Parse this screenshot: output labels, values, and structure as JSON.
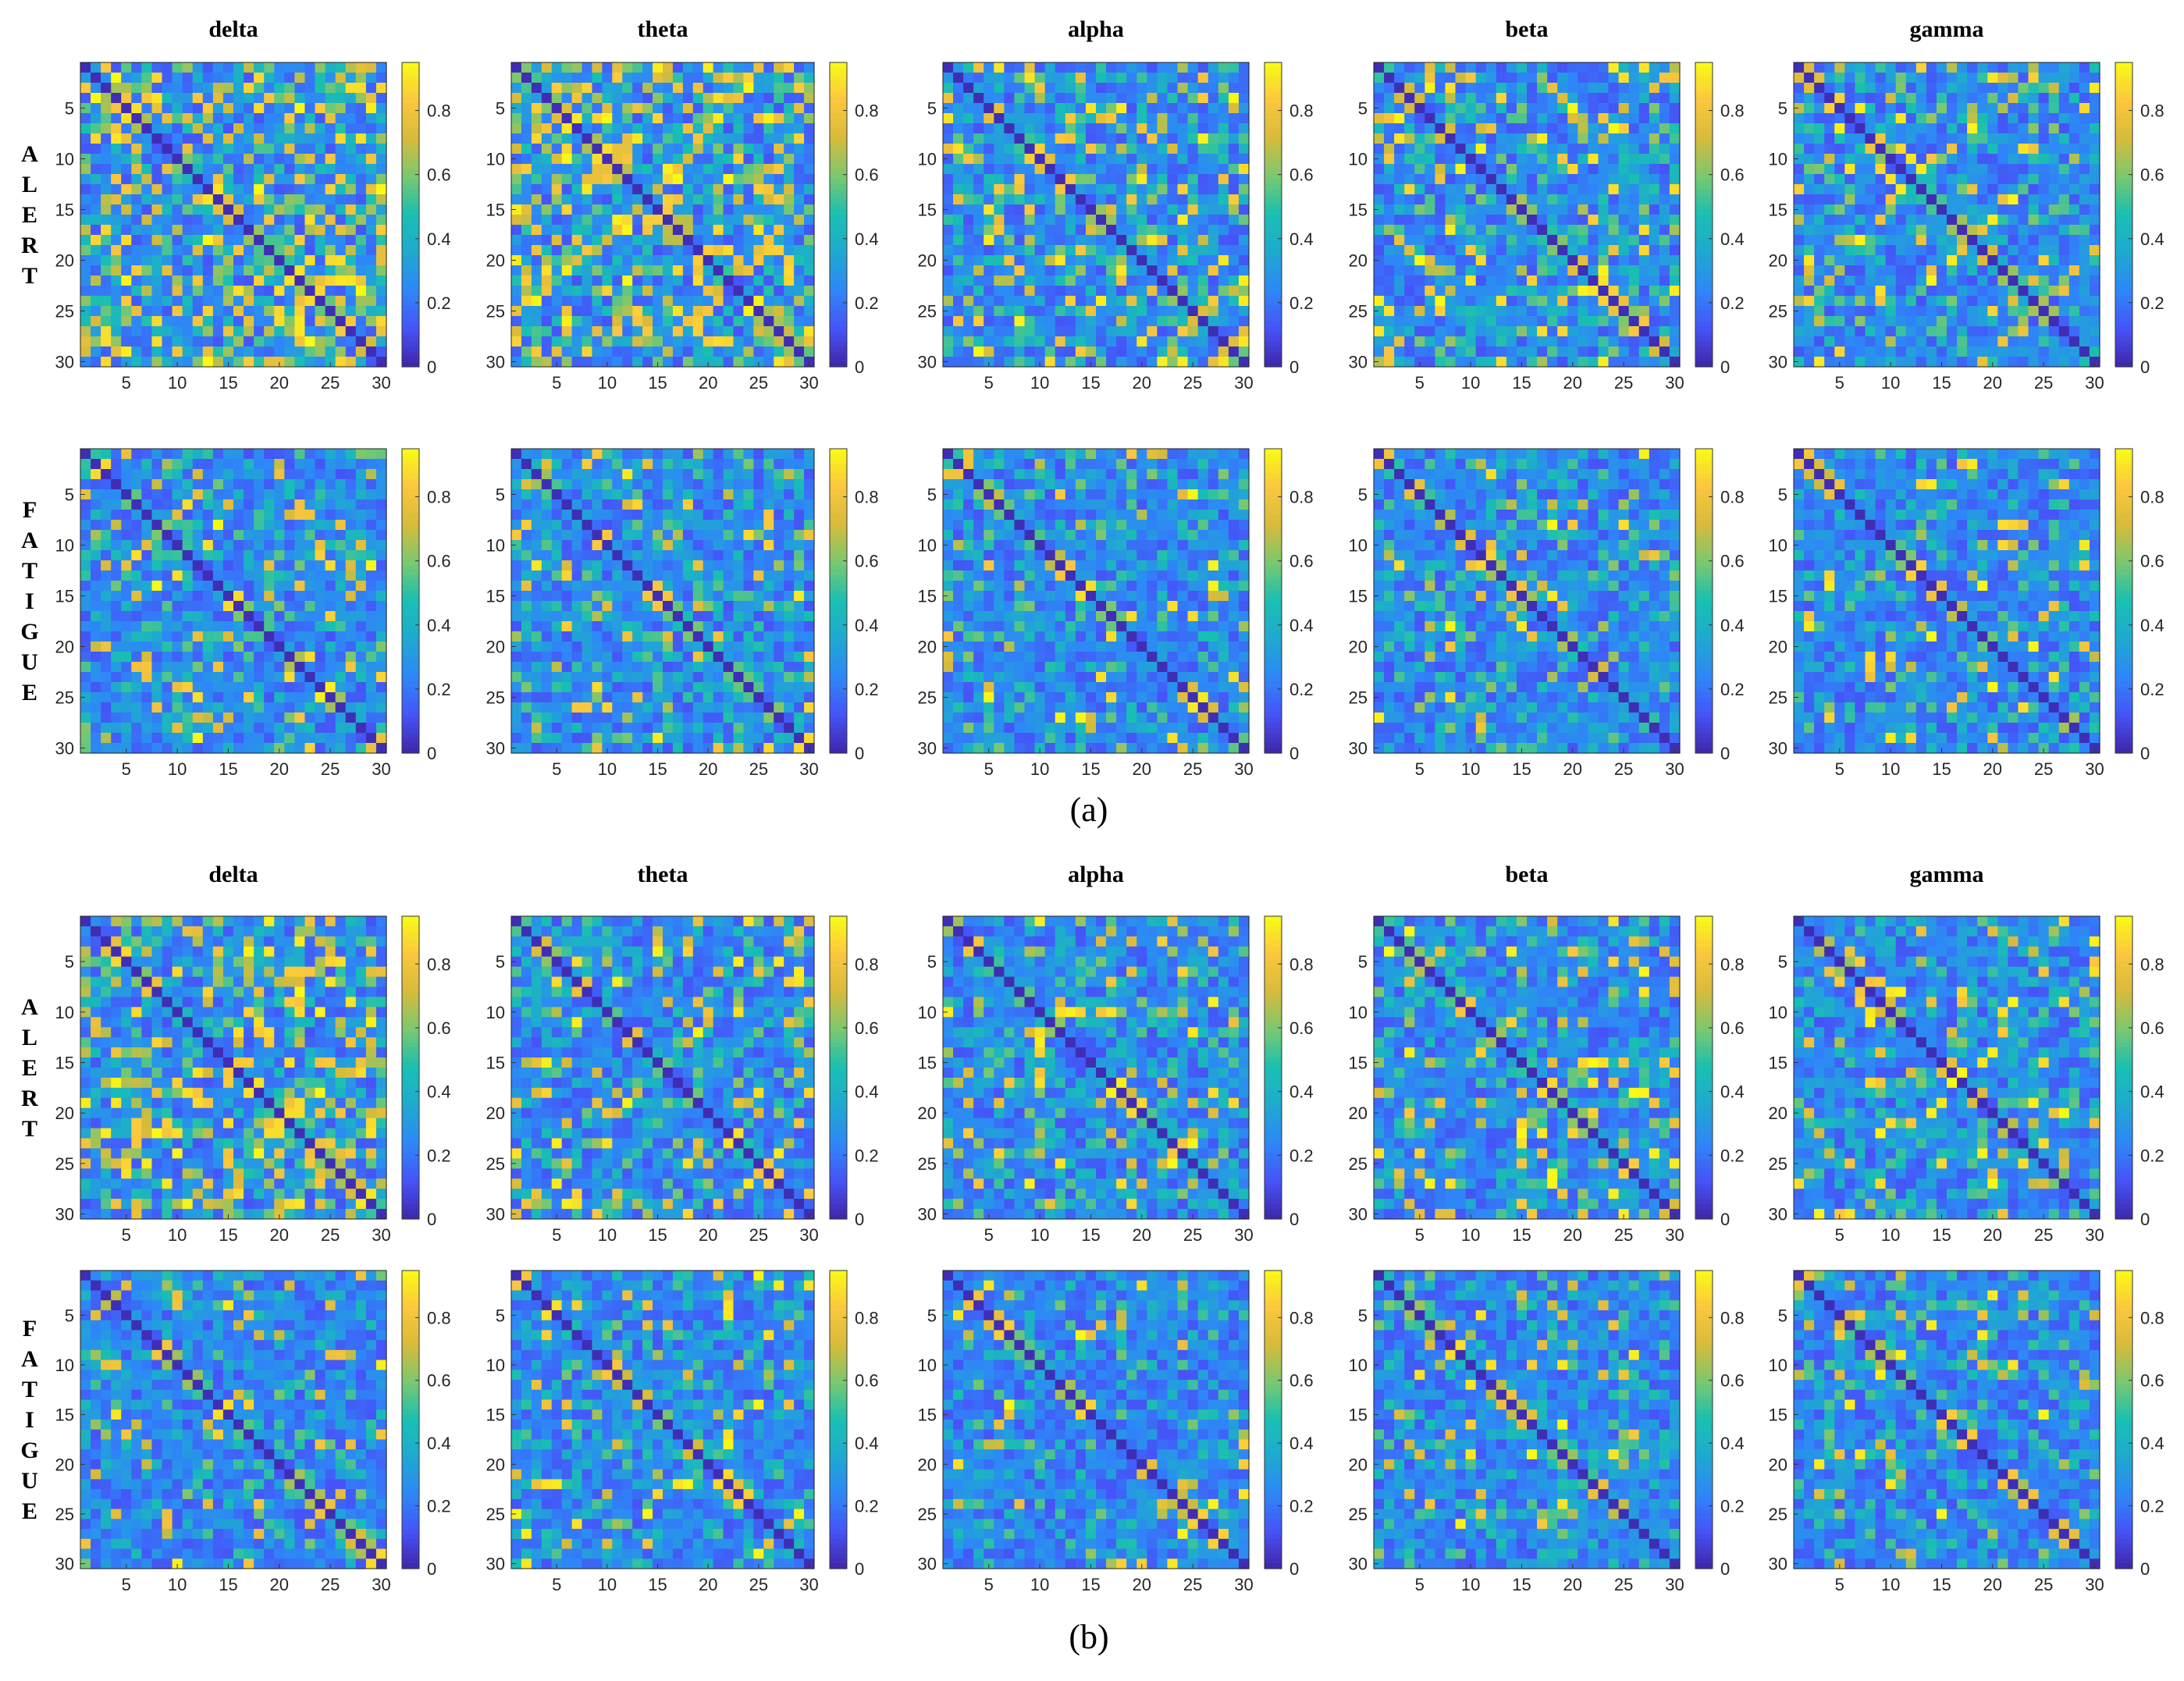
{
  "figure": {
    "panel_labels": [
      "(a)",
      "(b)"
    ],
    "row_labels": [
      "ALERT",
      "FATIGUE"
    ],
    "band_titles": [
      "delta",
      "theta",
      "alpha",
      "beta",
      "gamma"
    ]
  },
  "chart_data": {
    "type": "heatmap",
    "matrix_size": 30,
    "axis_ticks": [
      "5",
      "10",
      "15",
      "20",
      "25",
      "30"
    ],
    "colorbar": {
      "min": 0,
      "max": 0.95,
      "ticks": [
        "0",
        "0.2",
        "0.4",
        "0.6",
        "0.8"
      ],
      "colormap": "parula"
    },
    "colormap_stops": [
      "#3e26a8",
      "#4653f7",
      "#2e87f7",
      "#1fa9d0",
      "#19bfb2",
      "#7ac86f",
      "#d7bb3b",
      "#fac73e",
      "#f9fb15"
    ],
    "note": "Each panel is a symmetric 30x30 connectivity matrix (values 0 to ~0.95) with a dark-blue (near 0) diagonal. Cell values are too dense to read individually; values are regenerated to approximate each panel's visual character: ALERT matrices have more high-connectivity (yellow/green) cells than FATIGUE matrices.",
    "panels": [
      {
        "panel": "(a)",
        "state": "ALERT",
        "band": "delta",
        "high_fraction": 0.3,
        "seed": 11
      },
      {
        "panel": "(a)",
        "state": "ALERT",
        "band": "theta",
        "high_fraction": 0.32,
        "seed": 12
      },
      {
        "panel": "(a)",
        "state": "ALERT",
        "band": "alpha",
        "high_fraction": 0.18,
        "seed": 13
      },
      {
        "panel": "(a)",
        "state": "ALERT",
        "band": "beta",
        "high_fraction": 0.15,
        "seed": 14
      },
      {
        "panel": "(a)",
        "state": "ALERT",
        "band": "gamma",
        "high_fraction": 0.11,
        "seed": 15
      },
      {
        "panel": "(a)",
        "state": "FATIGUE",
        "band": "delta",
        "high_fraction": 0.09,
        "seed": 16
      },
      {
        "panel": "(a)",
        "state": "FATIGUE",
        "band": "theta",
        "high_fraction": 0.07,
        "seed": 17
      },
      {
        "panel": "(a)",
        "state": "FATIGUE",
        "band": "alpha",
        "high_fraction": 0.07,
        "seed": 18
      },
      {
        "panel": "(a)",
        "state": "FATIGUE",
        "band": "beta",
        "high_fraction": 0.06,
        "seed": 19
      },
      {
        "panel": "(a)",
        "state": "FATIGUE",
        "band": "gamma",
        "high_fraction": 0.06,
        "seed": 20
      },
      {
        "panel": "(b)",
        "state": "ALERT",
        "band": "delta",
        "high_fraction": 0.28,
        "seed": 21
      },
      {
        "panel": "(b)",
        "state": "ALERT",
        "band": "theta",
        "high_fraction": 0.16,
        "seed": 22
      },
      {
        "panel": "(b)",
        "state": "ALERT",
        "band": "alpha",
        "high_fraction": 0.13,
        "seed": 23
      },
      {
        "panel": "(b)",
        "state": "ALERT",
        "band": "beta",
        "high_fraction": 0.14,
        "seed": 24
      },
      {
        "panel": "(b)",
        "state": "ALERT",
        "band": "gamma",
        "high_fraction": 0.09,
        "seed": 25
      },
      {
        "panel": "(b)",
        "state": "FATIGUE",
        "band": "delta",
        "high_fraction": 0.09,
        "seed": 26
      },
      {
        "panel": "(b)",
        "state": "FATIGUE",
        "band": "theta",
        "high_fraction": 0.07,
        "seed": 27
      },
      {
        "panel": "(b)",
        "state": "FATIGUE",
        "band": "alpha",
        "high_fraction": 0.06,
        "seed": 28
      },
      {
        "panel": "(b)",
        "state": "FATIGUE",
        "band": "beta",
        "high_fraction": 0.05,
        "seed": 29
      },
      {
        "panel": "(b)",
        "state": "FATIGUE",
        "band": "gamma",
        "high_fraction": 0.06,
        "seed": 30
      }
    ]
  }
}
